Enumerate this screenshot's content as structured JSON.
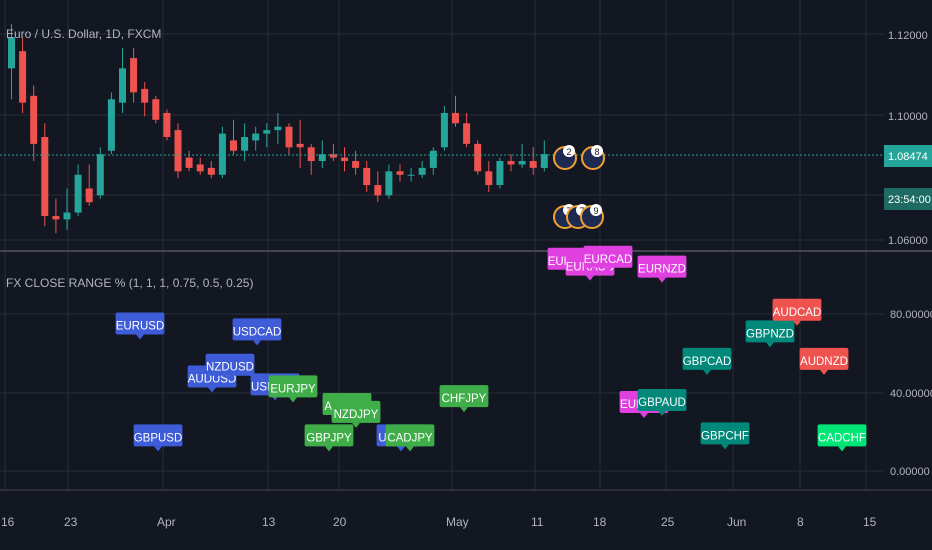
{
  "colors": {
    "bg": "#131722",
    "grid": "#2a2e39",
    "text": "#b2b5be",
    "up": "#26a69a",
    "down": "#ef5350",
    "blue": "#3e5bd8",
    "green": "#3fae49",
    "magenta": "#e040e0",
    "teal": "#00897b",
    "red": "#ef5350",
    "brightgreen": "#00e676",
    "price_line": "#26a69a"
  },
  "main": {
    "title": "Euro / U.S. Dollar, 1D, FXCM",
    "y_ticks": [
      "1.12000",
      "1.10000",
      "1.06000"
    ],
    "current_price": "1.08474",
    "countdown": "23:54:00",
    "event_labels": [
      "2",
      "8",
      "7",
      "7",
      "9"
    ],
    "candles": [
      {
        "o": 1.11,
        "h": 1.123,
        "l": 1.101,
        "c": 1.119
      },
      {
        "o": 1.115,
        "h": 1.119,
        "l": 1.097,
        "c": 1.1
      },
      {
        "o": 1.102,
        "h": 1.105,
        "l": 1.083,
        "c": 1.088
      },
      {
        "o": 1.09,
        "h": 1.094,
        "l": 1.064,
        "c": 1.067
      },
      {
        "o": 1.067,
        "h": 1.072,
        "l": 1.062,
        "c": 1.066
      },
      {
        "o": 1.066,
        "h": 1.075,
        "l": 1.063,
        "c": 1.068
      },
      {
        "o": 1.068,
        "h": 1.082,
        "l": 1.067,
        "c": 1.079
      },
      {
        "o": 1.075,
        "h": 1.082,
        "l": 1.07,
        "c": 1.071
      },
      {
        "o": 1.073,
        "h": 1.087,
        "l": 1.072,
        "c": 1.085
      },
      {
        "o": 1.086,
        "h": 1.103,
        "l": 1.085,
        "c": 1.101
      },
      {
        "o": 1.1,
        "h": 1.116,
        "l": 1.097,
        "c": 1.11
      },
      {
        "o": 1.113,
        "h": 1.116,
        "l": 1.1,
        "c": 1.103
      },
      {
        "o": 1.104,
        "h": 1.106,
        "l": 1.096,
        "c": 1.1
      },
      {
        "o": 1.101,
        "h": 1.102,
        "l": 1.094,
        "c": 1.095
      },
      {
        "o": 1.097,
        "h": 1.098,
        "l": 1.089,
        "c": 1.09
      },
      {
        "o": 1.092,
        "h": 1.094,
        "l": 1.078,
        "c": 1.08
      },
      {
        "o": 1.084,
        "h": 1.086,
        "l": 1.08,
        "c": 1.081
      },
      {
        "o": 1.082,
        "h": 1.084,
        "l": 1.079,
        "c": 1.08
      },
      {
        "o": 1.081,
        "h": 1.083,
        "l": 1.078,
        "c": 1.079
      },
      {
        "o": 1.079,
        "h": 1.093,
        "l": 1.078,
        "c": 1.091
      },
      {
        "o": 1.089,
        "h": 1.095,
        "l": 1.085,
        "c": 1.086
      },
      {
        "o": 1.086,
        "h": 1.094,
        "l": 1.083,
        "c": 1.09
      },
      {
        "o": 1.089,
        "h": 1.093,
        "l": 1.086,
        "c": 1.091
      },
      {
        "o": 1.091,
        "h": 1.094,
        "l": 1.087,
        "c": 1.092
      },
      {
        "o": 1.092,
        "h": 1.097,
        "l": 1.088,
        "c": 1.093
      },
      {
        "o": 1.093,
        "h": 1.094,
        "l": 1.085,
        "c": 1.087
      },
      {
        "o": 1.088,
        "h": 1.095,
        "l": 1.081,
        "c": 1.087
      },
      {
        "o": 1.087,
        "h": 1.088,
        "l": 1.079,
        "c": 1.083
      },
      {
        "o": 1.083,
        "h": 1.089,
        "l": 1.081,
        "c": 1.085
      },
      {
        "o": 1.085,
        "h": 1.088,
        "l": 1.083,
        "c": 1.084
      },
      {
        "o": 1.084,
        "h": 1.087,
        "l": 1.08,
        "c": 1.083
      },
      {
        "o": 1.083,
        "h": 1.086,
        "l": 1.079,
        "c": 1.081
      },
      {
        "o": 1.081,
        "h": 1.083,
        "l": 1.074,
        "c": 1.076
      },
      {
        "o": 1.076,
        "h": 1.08,
        "l": 1.071,
        "c": 1.073
      },
      {
        "o": 1.073,
        "h": 1.082,
        "l": 1.072,
        "c": 1.08
      },
      {
        "o": 1.08,
        "h": 1.082,
        "l": 1.077,
        "c": 1.079
      },
      {
        "o": 1.079,
        "h": 1.081,
        "l": 1.077,
        "c": 1.079
      },
      {
        "o": 1.079,
        "h": 1.083,
        "l": 1.078,
        "c": 1.081
      },
      {
        "o": 1.081,
        "h": 1.087,
        "l": 1.079,
        "c": 1.086
      },
      {
        "o": 1.087,
        "h": 1.099,
        "l": 1.086,
        "c": 1.097
      },
      {
        "o": 1.097,
        "h": 1.102,
        "l": 1.093,
        "c": 1.094
      },
      {
        "o": 1.094,
        "h": 1.097,
        "l": 1.087,
        "c": 1.088
      },
      {
        "o": 1.088,
        "h": 1.089,
        "l": 1.079,
        "c": 1.08
      },
      {
        "o": 1.08,
        "h": 1.083,
        "l": 1.074,
        "c": 1.076
      },
      {
        "o": 1.076,
        "h": 1.084,
        "l": 1.075,
        "c": 1.083
      },
      {
        "o": 1.083,
        "h": 1.085,
        "l": 1.08,
        "c": 1.082
      },
      {
        "o": 1.082,
        "h": 1.088,
        "l": 1.081,
        "c": 1.083
      },
      {
        "o": 1.083,
        "h": 1.087,
        "l": 1.079,
        "c": 1.081
      },
      {
        "o": 1.081,
        "h": 1.089,
        "l": 1.08,
        "c": 1.085
      }
    ]
  },
  "indicator": {
    "title": "FX CLOSE RANGE % (1, 1, 1, 0.75, 0.5, 0.25)",
    "y_ticks": [
      "80.00000",
      "40.00000",
      "0.00000"
    ],
    "labels": [
      {
        "text": "EURUSD",
        "color": "blue",
        "value": 67,
        "day": "2020-03-31"
      },
      {
        "text": "GBPUSD",
        "color": "blue",
        "value": 10,
        "day": "2020-04-02"
      },
      {
        "text": "AUDUSD",
        "color": "blue",
        "value": 40,
        "day": "2020-04-08"
      },
      {
        "text": "NZDUSD",
        "color": "blue",
        "value": 46,
        "day": "2020-04-10"
      },
      {
        "text": "USDCAD",
        "color": "blue",
        "value": 64,
        "day": "2020-04-13"
      },
      {
        "text": "USDCHF",
        "color": "blue",
        "value": 36,
        "day": "2020-04-15"
      },
      {
        "text": "EURJPY",
        "color": "green",
        "value": 35,
        "day": "2020-04-17"
      },
      {
        "text": "GBPJPY",
        "color": "green",
        "value": 10,
        "day": "2020-04-21"
      },
      {
        "text": "AUDJPY",
        "color": "green",
        "value": 26,
        "day": "2020-04-23"
      },
      {
        "text": "NZDJPY",
        "color": "green",
        "value": 22,
        "day": "2020-04-24"
      },
      {
        "text": "USDJPY",
        "color": "blue",
        "value": 10,
        "day": "2020-04-29"
      },
      {
        "text": "CADJPY",
        "color": "green",
        "value": 10,
        "day": "2020-04-30"
      },
      {
        "text": "CHFJPY",
        "color": "green",
        "value": 30,
        "day": "2020-05-06"
      },
      {
        "text": "EURGBP",
        "color": "magenta",
        "value": 100,
        "day": "2020-05-18"
      },
      {
        "text": "EURAUD",
        "color": "magenta",
        "value": 97,
        "day": "2020-05-20"
      },
      {
        "text": "EURCAD",
        "color": "magenta",
        "value": 101,
        "day": "2020-05-22"
      },
      {
        "text": "EURNZD",
        "color": "magenta",
        "value": 96,
        "day": "2020-05-28"
      },
      {
        "text": "EURCHF",
        "color": "magenta",
        "value": 27,
        "day": "2020-05-26"
      },
      {
        "text": "GBPAUD",
        "color": "teal",
        "value": 28,
        "day": "2020-05-28"
      },
      {
        "text": "GBPCAD",
        "color": "teal",
        "value": 49,
        "day": "2020-06-02"
      },
      {
        "text": "GBPCHF",
        "color": "teal",
        "value": 11,
        "day": "2020-06-04"
      },
      {
        "text": "GBPNZD",
        "color": "teal",
        "value": 63,
        "day": "2020-06-09"
      },
      {
        "text": "AUDCAD",
        "color": "red",
        "value": 74,
        "day": "2020-06-12"
      },
      {
        "text": "AUDNZD",
        "color": "red",
        "value": 49,
        "day": "2020-06-15"
      },
      {
        "text": "CADCHF",
        "color": "brightgreen",
        "value": 10,
        "day": "2020-06-17"
      }
    ]
  },
  "x_axis": {
    "labels": [
      "16",
      "23",
      "Apr",
      "13",
      "20",
      "May",
      "11",
      "18",
      "25",
      "Jun",
      "8",
      "15"
    ]
  }
}
